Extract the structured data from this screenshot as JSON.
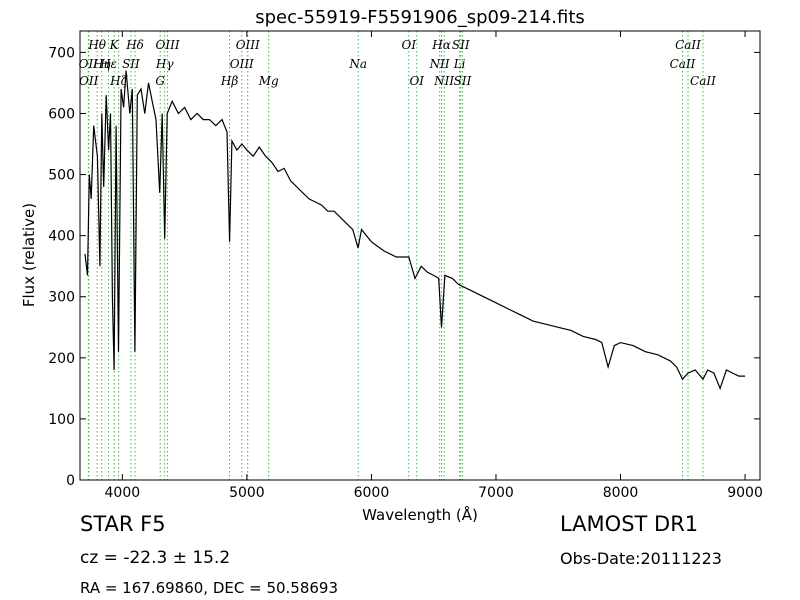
{
  "chart_data": {
    "type": "line",
    "title": "spec-55919-F5591906_sp09-214.fits",
    "xlabel": "Wavelength (Å)",
    "ylabel": "Flux (relative)",
    "xlim": [
      3660,
      9120
    ],
    "ylim": [
      0,
      735
    ],
    "xticks": [
      4000,
      5000,
      6000,
      7000,
      8000,
      9000
    ],
    "yticks": [
      0,
      100,
      200,
      300,
      400,
      500,
      600,
      700
    ],
    "grid": false,
    "series": [
      {
        "color": "#000000",
        "x": [
          3700,
          3720,
          3735,
          3750,
          3770,
          3800,
          3820,
          3835,
          3850,
          3870,
          3890,
          3905,
          3920,
          3934,
          3950,
          3969,
          3990,
          4010,
          4030,
          4060,
          4080,
          4101,
          4120,
          4150,
          4180,
          4210,
          4240,
          4270,
          4300,
          4320,
          4340,
          4360,
          4400,
          4450,
          4500,
          4550,
          4600,
          4650,
          4700,
          4750,
          4800,
          4840,
          4861,
          4880,
          4920,
          4960,
          5000,
          5050,
          5100,
          5150,
          5200,
          5250,
          5300,
          5350,
          5400,
          5450,
          5500,
          5550,
          5600,
          5650,
          5700,
          5750,
          5800,
          5850,
          5893,
          5920,
          6000,
          6100,
          6200,
          6300,
          6350,
          6400,
          6450,
          6500,
          6540,
          6563,
          6590,
          6650,
          6700,
          6800,
          6900,
          7000,
          7100,
          7200,
          7300,
          7400,
          7500,
          7600,
          7700,
          7800,
          7850,
          7900,
          7950,
          8000,
          8100,
          8200,
          8300,
          8400,
          8450,
          8498,
          8542,
          8600,
          8662,
          8700,
          8750,
          8800,
          8850,
          8900,
          8950,
          9000
        ],
        "values": [
          370,
          335,
          500,
          460,
          580,
          530,
          350,
          600,
          480,
          630,
          540,
          600,
          300,
          180,
          580,
          210,
          640,
          610,
          670,
          600,
          640,
          210,
          630,
          640,
          600,
          650,
          620,
          590,
          470,
          600,
          395,
          600,
          620,
          600,
          610,
          590,
          600,
          590,
          590,
          580,
          590,
          570,
          390,
          555,
          540,
          550,
          540,
          530,
          545,
          530,
          520,
          505,
          510,
          490,
          480,
          470,
          460,
          455,
          450,
          440,
          440,
          430,
          420,
          410,
          380,
          410,
          390,
          375,
          365,
          365,
          330,
          350,
          340,
          335,
          330,
          250,
          335,
          330,
          320,
          310,
          300,
          290,
          280,
          270,
          260,
          255,
          250,
          245,
          235,
          230,
          225,
          185,
          220,
          225,
          220,
          210,
          205,
          195,
          185,
          165,
          175,
          180,
          165,
          180,
          175,
          150,
          180,
          175,
          170,
          170
        ]
      }
    ],
    "lines": [
      {
        "name": "OII",
        "wave": 3727,
        "row": 2
      },
      {
        "name": "OII",
        "wave": 3730,
        "row": 3
      },
      {
        "name": "Hθ",
        "wave": 3798,
        "row": 1
      },
      {
        "name": "Hη",
        "wave": 3835,
        "row": 2
      },
      {
        "name": "Hε",
        "wave": 3889,
        "row": 2
      },
      {
        "name": "Hζ",
        "wave": 3970,
        "row": 3
      },
      {
        "name": "K",
        "wave": 3934,
        "row": 1
      },
      {
        "name": "SII",
        "wave": 4069,
        "row": 2
      },
      {
        "name": "Hδ",
        "wave": 4102,
        "row": 1
      },
      {
        "name": "OIII",
        "wave": 4363,
        "row": 1
      },
      {
        "name": "Hγ",
        "wave": 4340,
        "row": 2
      },
      {
        "name": "G",
        "wave": 4304,
        "row": 3
      },
      {
        "name": "Hβ",
        "wave": 4861,
        "row": 3
      },
      {
        "name": "OIII",
        "wave": 5007,
        "row": 1
      },
      {
        "name": "OIII",
        "wave": 4959,
        "row": 2
      },
      {
        "name": "Mg",
        "wave": 5175,
        "row": 3
      },
      {
        "name": "Na",
        "wave": 5894,
        "row": 2
      },
      {
        "name": "OI",
        "wave": 6300,
        "row": 1
      },
      {
        "name": "OI",
        "wave": 6364,
        "row": 3
      },
      {
        "name": "Hα",
        "wave": 6563,
        "row": 1
      },
      {
        "name": "NII",
        "wave": 6548,
        "row": 2
      },
      {
        "name": "NII",
        "wave": 6584,
        "row": 3
      },
      {
        "name": "SII",
        "wave": 6717,
        "row": 1
      },
      {
        "name": "Li",
        "wave": 6708,
        "row": 2
      },
      {
        "name": "SII",
        "wave": 6731,
        "row": 3
      },
      {
        "name": "CaII",
        "wave": 8498,
        "row": 2
      },
      {
        "name": "CaII",
        "wave": 8542,
        "row": 1
      },
      {
        "name": "CaII",
        "wave": 8662,
        "row": 3
      }
    ],
    "line_marker_color": "#4caf50"
  },
  "info": {
    "star_class": "STAR   F5",
    "survey": "LAMOST DR1",
    "cz": "cz = -22.3 ± 15.2",
    "obs_date": "Obs-Date:20111223",
    "ra_dec": "RA = 167.69860, DEC = 50.58693"
  }
}
